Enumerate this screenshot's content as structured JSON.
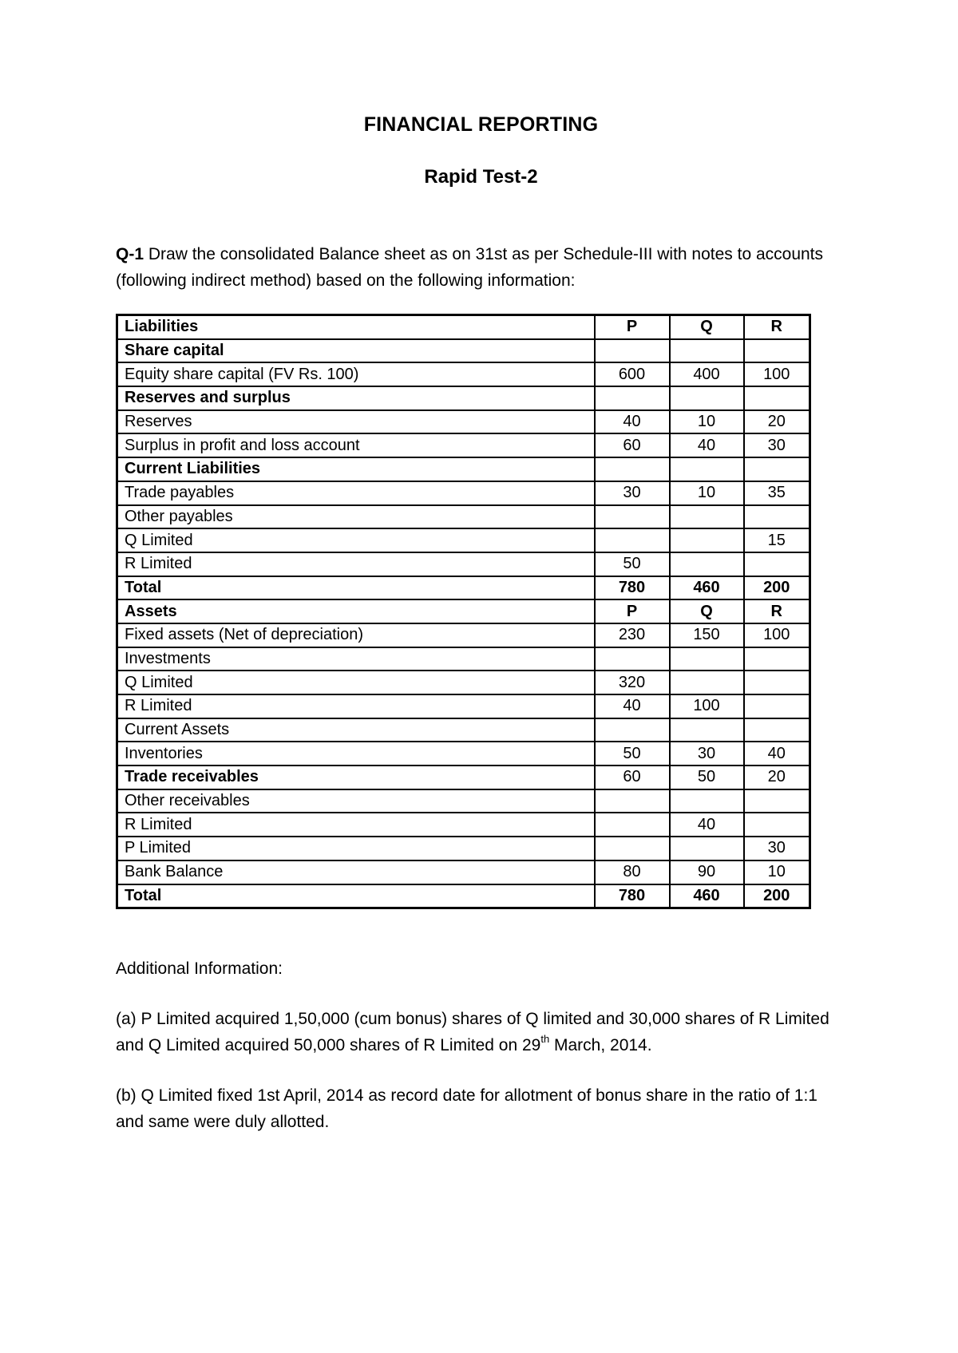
{
  "page_title": "FINANCIAL REPORTING",
  "page_subtitle": "Rapid Test-2",
  "question": {
    "label": "Q-1",
    "line1_rest": " Draw the consolidated Balance sheet as on 31st as per Schedule-III with notes to accounts",
    "line2": "(following indirect method) based on the following information:"
  },
  "table": {
    "header": {
      "label": "Liabilities",
      "p": "P",
      "q": "Q",
      "r": "R"
    },
    "rows": [
      {
        "label": "Share capital",
        "p": "",
        "q": "",
        "r": "",
        "label_bold": true,
        "value_bold": false
      },
      {
        "label": "Equity share capital (FV Rs. 100)",
        "p": "600",
        "q": "400",
        "r": "100",
        "label_bold": false,
        "value_bold": false
      },
      {
        "label": "Reserves and surplus",
        "p": "",
        "q": "",
        "r": "",
        "label_bold": true,
        "value_bold": false
      },
      {
        "label": "Reserves",
        "p": "40",
        "q": "10",
        "r": "20",
        "label_bold": false,
        "value_bold": false
      },
      {
        "label": "Surplus in profit and loss account",
        "p": "60",
        "q": "40",
        "r": "30",
        "label_bold": false,
        "value_bold": false
      },
      {
        "label": "Current Liabilities",
        "p": "",
        "q": "",
        "r": "",
        "label_bold": true,
        "value_bold": false
      },
      {
        "label": "Trade payables",
        "p": "30",
        "q": "10",
        "r": "35",
        "label_bold": false,
        "value_bold": false
      },
      {
        "label": "Other payables",
        "p": "",
        "q": "",
        "r": "",
        "label_bold": false,
        "value_bold": false
      },
      {
        "label": "Q Limited",
        "p": "",
        "q": "",
        "r": "15",
        "label_bold": false,
        "value_bold": false
      },
      {
        "label": "R Limited",
        "p": "50",
        "q": "",
        "r": "",
        "label_bold": false,
        "value_bold": false
      },
      {
        "label": "Total",
        "p": "780",
        "q": "460",
        "r": "200",
        "label_bold": true,
        "value_bold": true
      },
      {
        "label": "Assets",
        "p": "P",
        "q": "Q",
        "r": "R",
        "label_bold": true,
        "value_bold": true
      },
      {
        "label": "Fixed assets (Net of depreciation)",
        "p": "230",
        "q": "150",
        "r": "100",
        "label_bold": false,
        "value_bold": false
      },
      {
        "label": "Investments",
        "p": "",
        "q": "",
        "r": "",
        "label_bold": false,
        "value_bold": false
      },
      {
        "label": "Q Limited",
        "p": "320",
        "q": "",
        "r": "",
        "label_bold": false,
        "value_bold": false
      },
      {
        "label": "R Limited",
        "p": "40",
        "q": "100",
        "r": "",
        "label_bold": false,
        "value_bold": false
      },
      {
        "label": "Current Assets",
        "p": "",
        "q": "",
        "r": "",
        "label_bold": false,
        "value_bold": false
      },
      {
        "label": "Inventories",
        "p": "50",
        "q": "30",
        "r": "40",
        "label_bold": false,
        "value_bold": false
      },
      {
        "label": "Trade receivables",
        "p": "60",
        "q": "50",
        "r": "20",
        "label_bold": true,
        "value_bold": false
      },
      {
        "label": "Other receivables",
        "p": "",
        "q": "",
        "r": "",
        "label_bold": false,
        "value_bold": false
      },
      {
        "label": "R Limited",
        "p": "",
        "q": "40",
        "r": "",
        "label_bold": false,
        "value_bold": false
      },
      {
        "label": "P Limited",
        "p": "",
        "q": "",
        "r": "30",
        "label_bold": false,
        "value_bold": false
      },
      {
        "label": "Bank Balance",
        "p": "80",
        "q": "90",
        "r": "10",
        "label_bold": false,
        "value_bold": false
      },
      {
        "label": "Total",
        "p": "780",
        "q": "460",
        "r": "200",
        "label_bold": true,
        "value_bold": true
      }
    ]
  },
  "additional": {
    "heading": "Additional Information:",
    "item_a": {
      "line1": "(a) P Limited acquired 1,50,000 (cum bonus) shares of Q limited and 30,000 shares of R Limited",
      "line2_pre": "and Q Limited acquired 50,000 shares of R Limited on 29",
      "line2_sup": "th",
      "line2_post": " March, 2014."
    },
    "item_b": {
      "line1": "(b) Q Limited fixed 1st April, 2014 as record date for allotment of bonus share in the ratio of 1:1",
      "line2": "and same were duly allotted."
    }
  }
}
